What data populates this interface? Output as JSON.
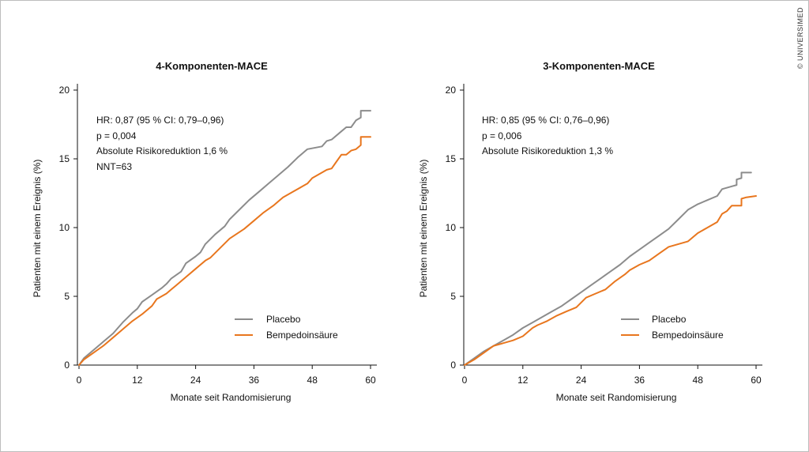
{
  "credit": "© UNIVERSIMED",
  "chart_data": [
    {
      "type": "line",
      "title": "4-Komponenten-MACE",
      "xlabel": "Monate seit Randomisierung",
      "ylabel": "Patienten mit einem Ereignis (%)",
      "xlim": [
        0,
        60
      ],
      "ylim": [
        0,
        20
      ],
      "xticks": [
        "0",
        "12",
        "24",
        "36",
        "48",
        "60"
      ],
      "yticks": [
        "0",
        "5",
        "10",
        "15",
        "20"
      ],
      "annotations": [
        "HR: 0,87 (95 % CI: 0,79–0,96)",
        "p = 0,004",
        "Absolute Risikoreduktion 1,6 %",
        "NNT=63"
      ],
      "legend_position": "bottom-right",
      "series": [
        {
          "name": "Placebo",
          "color": "#8c8c8c",
          "points": [
            [
              0,
              0
            ],
            [
              1,
              0.5
            ],
            [
              3,
              1.1
            ],
            [
              5,
              1.7
            ],
            [
              7,
              2.3
            ],
            [
              9,
              3.1
            ],
            [
              11,
              3.8
            ],
            [
              12,
              4.1
            ],
            [
              13,
              4.6
            ],
            [
              15,
              5.1
            ],
            [
              17,
              5.6
            ],
            [
              18,
              5.9
            ],
            [
              19,
              6.3
            ],
            [
              21,
              6.8
            ],
            [
              22,
              7.4
            ],
            [
              24,
              7.9
            ],
            [
              25,
              8.2
            ],
            [
              26,
              8.8
            ],
            [
              28,
              9.5
            ],
            [
              30,
              10.1
            ],
            [
              31,
              10.6
            ],
            [
              33,
              11.3
            ],
            [
              35,
              12.0
            ],
            [
              37,
              12.6
            ],
            [
              39,
              13.2
            ],
            [
              41,
              13.8
            ],
            [
              43,
              14.4
            ],
            [
              45,
              15.1
            ],
            [
              47,
              15.7
            ],
            [
              50,
              15.9
            ],
            [
              51,
              16.3
            ],
            [
              52,
              16.4
            ],
            [
              54,
              17.0
            ],
            [
              55,
              17.3
            ],
            [
              56,
              17.3
            ],
            [
              57,
              17.8
            ],
            [
              58,
              18.0
            ],
            [
              58,
              18.5
            ],
            [
              60,
              18.5
            ]
          ]
        },
        {
          "name": "Bempedoinsäure",
          "color": "#e8761e",
          "points": [
            [
              0,
              0
            ],
            [
              1,
              0.4
            ],
            [
              3,
              0.9
            ],
            [
              5,
              1.4
            ],
            [
              7,
              2.0
            ],
            [
              9,
              2.6
            ],
            [
              11,
              3.2
            ],
            [
              13,
              3.7
            ],
            [
              15,
              4.3
            ],
            [
              16,
              4.8
            ],
            [
              18,
              5.2
            ],
            [
              19,
              5.5
            ],
            [
              20,
              5.8
            ],
            [
              22,
              6.4
            ],
            [
              24,
              7.0
            ],
            [
              26,
              7.6
            ],
            [
              27,
              7.8
            ],
            [
              29,
              8.5
            ],
            [
              31,
              9.2
            ],
            [
              34,
              9.9
            ],
            [
              36,
              10.5
            ],
            [
              38,
              11.1
            ],
            [
              40,
              11.6
            ],
            [
              42,
              12.2
            ],
            [
              44,
              12.6
            ],
            [
              46,
              13.0
            ],
            [
              47,
              13.2
            ],
            [
              48,
              13.6
            ],
            [
              50,
              14.0
            ],
            [
              51,
              14.2
            ],
            [
              52,
              14.3
            ],
            [
              53,
              14.8
            ],
            [
              54,
              15.3
            ],
            [
              55,
              15.3
            ],
            [
              56,
              15.6
            ],
            [
              57,
              15.7
            ],
            [
              58,
              16.0
            ],
            [
              58,
              16.6
            ],
            [
              60,
              16.6
            ]
          ]
        }
      ]
    },
    {
      "type": "line",
      "title": "3-Komponenten-MACE",
      "xlabel": "Monate seit Randomisierung",
      "ylabel": "Patienten mit einem Ereignis (%)",
      "xlim": [
        0,
        60
      ],
      "ylim": [
        0,
        20
      ],
      "xticks": [
        "0",
        "12",
        "24",
        "36",
        "48",
        "60"
      ],
      "yticks": [
        "0",
        "5",
        "10",
        "15",
        "20"
      ],
      "annotations": [
        "HR: 0,85 (95 % CI: 0,76–0,96)",
        "p = 0,006",
        "Absolute Risikoreduktion 1,3 %"
      ],
      "legend_position": "bottom-right",
      "series": [
        {
          "name": "Placebo",
          "color": "#8c8c8c",
          "points": [
            [
              0,
              0
            ],
            [
              2,
              0.5
            ],
            [
              4,
              1.0
            ],
            [
              6,
              1.4
            ],
            [
              8,
              1.8
            ],
            [
              10,
              2.2
            ],
            [
              12,
              2.7
            ],
            [
              14,
              3.1
            ],
            [
              16,
              3.5
            ],
            [
              18,
              3.9
            ],
            [
              20,
              4.3
            ],
            [
              22,
              4.8
            ],
            [
              24,
              5.3
            ],
            [
              26,
              5.8
            ],
            [
              28,
              6.3
            ],
            [
              30,
              6.8
            ],
            [
              32,
              7.3
            ],
            [
              34,
              7.9
            ],
            [
              36,
              8.4
            ],
            [
              38,
              8.9
            ],
            [
              40,
              9.4
            ],
            [
              42,
              9.9
            ],
            [
              44,
              10.6
            ],
            [
              46,
              11.3
            ],
            [
              48,
              11.7
            ],
            [
              50,
              12.0
            ],
            [
              52,
              12.3
            ],
            [
              53,
              12.8
            ],
            [
              55,
              13.0
            ],
            [
              56,
              13.1
            ],
            [
              56,
              13.5
            ],
            [
              57,
              13.6
            ],
            [
              57,
              14.0
            ],
            [
              59,
              14.0
            ]
          ]
        },
        {
          "name": "Bempedoinsäure",
          "color": "#e8761e",
          "points": [
            [
              0,
              0
            ],
            [
              2,
              0.4
            ],
            [
              4,
              0.9
            ],
            [
              6,
              1.4
            ],
            [
              8,
              1.6
            ],
            [
              10,
              1.8
            ],
            [
              12,
              2.1
            ],
            [
              14,
              2.7
            ],
            [
              15,
              2.9
            ],
            [
              17,
              3.2
            ],
            [
              19,
              3.6
            ],
            [
              21,
              3.9
            ],
            [
              23,
              4.2
            ],
            [
              25,
              4.9
            ],
            [
              27,
              5.2
            ],
            [
              29,
              5.5
            ],
            [
              31,
              6.1
            ],
            [
              33,
              6.6
            ],
            [
              34,
              6.9
            ],
            [
              36,
              7.3
            ],
            [
              38,
              7.6
            ],
            [
              40,
              8.1
            ],
            [
              42,
              8.6
            ],
            [
              44,
              8.8
            ],
            [
              46,
              9.0
            ],
            [
              48,
              9.6
            ],
            [
              50,
              10.0
            ],
            [
              52,
              10.4
            ],
            [
              53,
              11.0
            ],
            [
              54,
              11.2
            ],
            [
              55,
              11.6
            ],
            [
              57,
              11.6
            ],
            [
              57,
              12.1
            ],
            [
              58,
              12.2
            ],
            [
              60,
              12.3
            ]
          ]
        }
      ]
    }
  ]
}
